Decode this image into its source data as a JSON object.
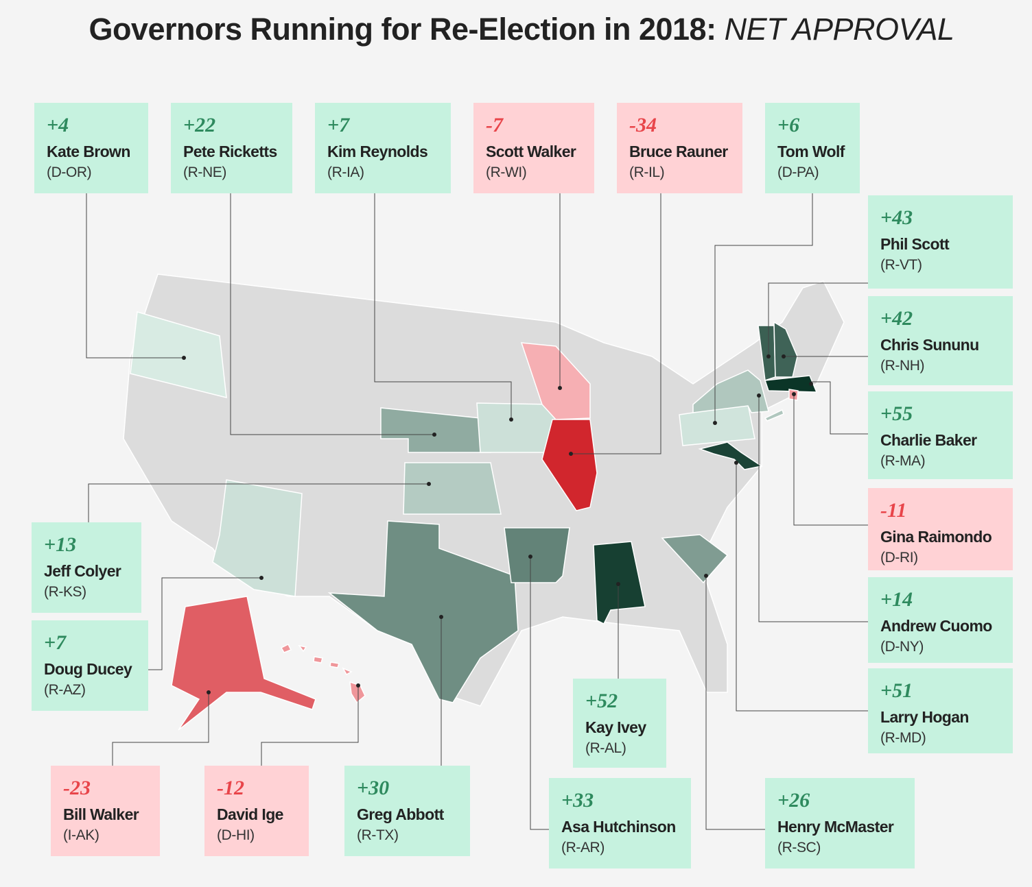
{
  "title": "Governors Running for Re-Election in 2018:",
  "title_emphasis": "NET APPROVAL",
  "governors": [
    {
      "approval": 4,
      "approval_label": "+4",
      "name": "Kate Brown",
      "party": "(D-OR)"
    },
    {
      "approval": 22,
      "approval_label": "+22",
      "name": "Pete Ricketts",
      "party": "(R-NE)"
    },
    {
      "approval": 7,
      "approval_label": "+7",
      "name": "Kim Reynolds",
      "party": "(R-IA)"
    },
    {
      "approval": -7,
      "approval_label": "-7",
      "name": "Scott Walker",
      "party": "(R-WI)"
    },
    {
      "approval": -34,
      "approval_label": "-34",
      "name": "Bruce Rauner",
      "party": "(R-IL)"
    },
    {
      "approval": 6,
      "approval_label": "+6",
      "name": "Tom Wolf",
      "party": "(D-PA)"
    },
    {
      "approval": 43,
      "approval_label": "+43",
      "name": "Phil Scott",
      "party": "(R-VT)"
    },
    {
      "approval": 42,
      "approval_label": "+42",
      "name": "Chris Sununu",
      "party": "(R-NH)"
    },
    {
      "approval": 55,
      "approval_label": "+55",
      "name": "Charlie Baker",
      "party": "(R-MA)"
    },
    {
      "approval": -11,
      "approval_label": "-11",
      "name": "Gina Raimondo",
      "party": "(D-RI)"
    },
    {
      "approval": 14,
      "approval_label": "+14",
      "name": "Andrew Cuomo",
      "party": "(D-NY)"
    },
    {
      "approval": 51,
      "approval_label": "+51",
      "name": "Larry Hogan",
      "party": "(R-MD)"
    },
    {
      "approval": 13,
      "approval_label": "+13",
      "name": "Jeff Colyer",
      "party": "(R-KS)"
    },
    {
      "approval": 7,
      "approval_label": "+7",
      "name": "Doug Ducey",
      "party": "(R-AZ)"
    },
    {
      "approval": -23,
      "approval_label": "-23",
      "name": "Bill Walker",
      "party": "(I-AK)"
    },
    {
      "approval": -12,
      "approval_label": "-12",
      "name": "David Ige",
      "party": "(D-HI)"
    },
    {
      "approval": 30,
      "approval_label": "+30",
      "name": "Greg Abbott",
      "party": "(R-TX)"
    },
    {
      "approval": 33,
      "approval_label": "+33",
      "name": "Asa Hutchinson",
      "party": "(R-AR)"
    },
    {
      "approval": 52,
      "approval_label": "+52",
      "name": "Kay Ivey",
      "party": "(R-AL)"
    },
    {
      "approval": 26,
      "approval_label": "+26",
      "name": "Henry McMaster",
      "party": "(R-SC)"
    }
  ]
}
